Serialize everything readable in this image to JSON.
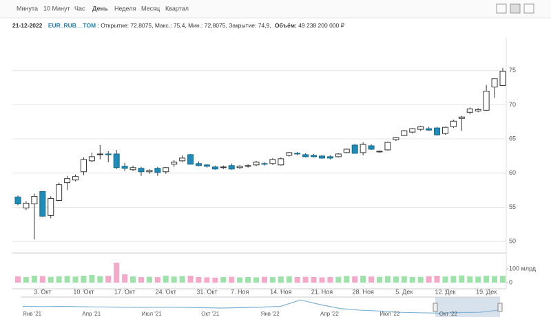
{
  "toolbar": {
    "tabs": [
      "Минута",
      "10 Минут",
      "Час",
      "День",
      "Неделя",
      "Месяц",
      "Квартал"
    ],
    "active": 3
  },
  "info": {
    "date": "21-12-2022",
    "ticker": "EUR_RUB__TOM",
    "ohlc": ": Открытие: 72,8075, Макс.: 75,4, Мин.: 72,8075, Закрытие: 74,9,",
    "volume_label": "Объём:",
    "volume": "49 238 200 000 ₽"
  },
  "chart_data": {
    "type": "candlestick",
    "categories": [
      null,
      null,
      null,
      "3. Окт",
      null,
      null,
      null,
      null,
      "10. Окт",
      null,
      null,
      null,
      null,
      "17. Окт",
      null,
      null,
      null,
      null,
      "24. Окт",
      null,
      null,
      null,
      null,
      "31. Окт",
      null,
      null,
      null,
      "7. Ноя",
      null,
      null,
      null,
      null,
      "14. Ноя",
      null,
      null,
      null,
      null,
      "21. Ноя",
      null,
      null,
      null,
      null,
      "28. Ноя",
      null,
      null,
      null,
      null,
      "5. Дек",
      null,
      null,
      null,
      null,
      "12. Дек",
      null,
      null,
      null,
      null,
      "19. Дек",
      null,
      null
    ],
    "open": [
      56.5,
      54.9,
      55.5,
      57.3,
      53.8,
      56.0,
      58.6,
      59.0,
      60.2,
      61.8,
      62.7,
      62.8,
      62.8,
      61.0,
      60.5,
      60.7,
      60.2,
      60.7,
      60.2,
      61.3,
      61.8,
      62.7,
      61.4,
      61.2,
      60.9,
      60.8,
      61.1,
      60.8,
      61.0,
      61.2,
      61.4,
      61.4,
      61.2,
      62.6,
      62.9,
      62.7,
      62.6,
      62.5,
      62.4,
      62.4,
      63.0,
      64.1,
      63.0,
      64.0,
      63.1,
      63.4,
      64.9,
      65.5,
      66.0,
      66.4,
      66.5,
      66.6,
      65.8,
      66.8,
      68.0,
      68.9,
      69.1,
      69.2,
      72.6,
      72.8075
    ],
    "high": [
      56.7,
      55.9,
      57.0,
      57.4,
      56.6,
      58.6,
      59.6,
      59.8,
      62.3,
      63.0,
      64.1,
      63.2,
      63.4,
      61.5,
      61.1,
      60.9,
      60.6,
      60.9,
      60.9,
      61.9,
      62.6,
      62.8,
      61.7,
      61.3,
      61.1,
      61.1,
      61.4,
      61.2,
      61.3,
      61.8,
      61.6,
      62.2,
      62.3,
      63.1,
      63.1,
      62.9,
      62.8,
      62.7,
      62.6,
      62.9,
      63.6,
      64.3,
      64.5,
      64.2,
      63.3,
      64.6,
      65.3,
      66.3,
      66.6,
      66.9,
      66.8,
      66.8,
      66.8,
      67.8,
      68.4,
      69.6,
      69.5,
      72.9,
      73.8,
      75.4
    ],
    "low": [
      55.3,
      54.6,
      50.3,
      53.6,
      53.4,
      55.9,
      57.5,
      58.8,
      59.7,
      61.6,
      62.0,
      61.6,
      60.6,
      60.3,
      60.3,
      59.6,
      59.9,
      59.6,
      59.9,
      60.9,
      61.6,
      61.3,
      61.0,
      60.8,
      60.5,
      60.6,
      60.5,
      60.6,
      60.8,
      61.0,
      61.1,
      61.2,
      61.1,
      62.4,
      62.6,
      62.3,
      62.3,
      62.1,
      62.0,
      62.3,
      62.9,
      62.9,
      62.6,
      63.4,
      63.0,
      63.3,
      64.7,
      65.4,
      65.8,
      66.2,
      66.2,
      65.5,
      65.6,
      66.6,
      66.2,
      68.6,
      68.9,
      69.1,
      71.0,
      72.8075
    ],
    "close": [
      55.5,
      55.6,
      56.6,
      53.7,
      56.3,
      58.3,
      59.2,
      59.5,
      62.0,
      62.4,
      62.8,
      62.7,
      60.8,
      60.7,
      60.8,
      60.2,
      60.4,
      60.1,
      60.8,
      61.6,
      62.2,
      61.3,
      61.1,
      61.0,
      60.6,
      60.9,
      60.6,
      61.0,
      61.1,
      61.6,
      61.3,
      62.0,
      62.1,
      63.0,
      62.8,
      62.4,
      62.4,
      62.2,
      62.2,
      62.8,
      63.5,
      62.9,
      64.2,
      63.5,
      63.2,
      64.5,
      65.2,
      66.2,
      66.5,
      66.8,
      66.3,
      65.6,
      66.7,
      67.6,
      68.2,
      69.4,
      69.3,
      72.0,
      73.8,
      74.9
    ],
    "up_color": "#ffffff",
    "down_color": "#1f8bb8",
    "wick_color": "#333333",
    "ylim": [
      48.3,
      79.8
    ],
    "yticks": [
      50,
      55,
      60,
      65,
      70,
      75
    ],
    "grid": true,
    "volume": {
      "values": [
        45,
        40,
        50,
        48,
        42,
        45,
        48,
        44,
        50,
        55,
        47,
        50,
        145,
        60,
        45,
        40,
        42,
        40,
        50,
        44,
        48,
        50,
        40,
        38,
        36,
        40,
        42,
        38,
        40,
        38,
        42,
        40,
        44,
        46,
        40,
        42,
        40,
        38,
        40,
        42,
        48,
        46,
        50,
        44,
        42,
        48,
        44,
        46,
        40,
        42,
        46,
        50,
        44,
        48,
        52,
        45,
        44,
        50,
        48,
        49.2382
      ],
      "ylim": [
        0,
        195
      ],
      "yticks": [
        0,
        {
          "value": 100,
          "label": "100 млрд"
        }
      ],
      "up_color": "#9de3a9",
      "down_color": "#f4a9c8"
    },
    "navigator": {
      "labels": [
        "Янв '21",
        "Апр '21",
        "Июл '21",
        "Окт '21",
        "Янв '22",
        "Апр '22",
        "Июл '22",
        "Окт '22"
      ],
      "values": [
        90,
        89,
        90,
        88,
        87,
        86,
        85,
        86,
        85,
        84,
        82,
        84,
        86,
        90,
        120,
        98,
        80,
        72,
        68,
        62,
        60,
        58,
        61,
        62,
        72
      ],
      "ylim": [
        40,
        140
      ],
      "color": "#7fb3d5"
    }
  }
}
